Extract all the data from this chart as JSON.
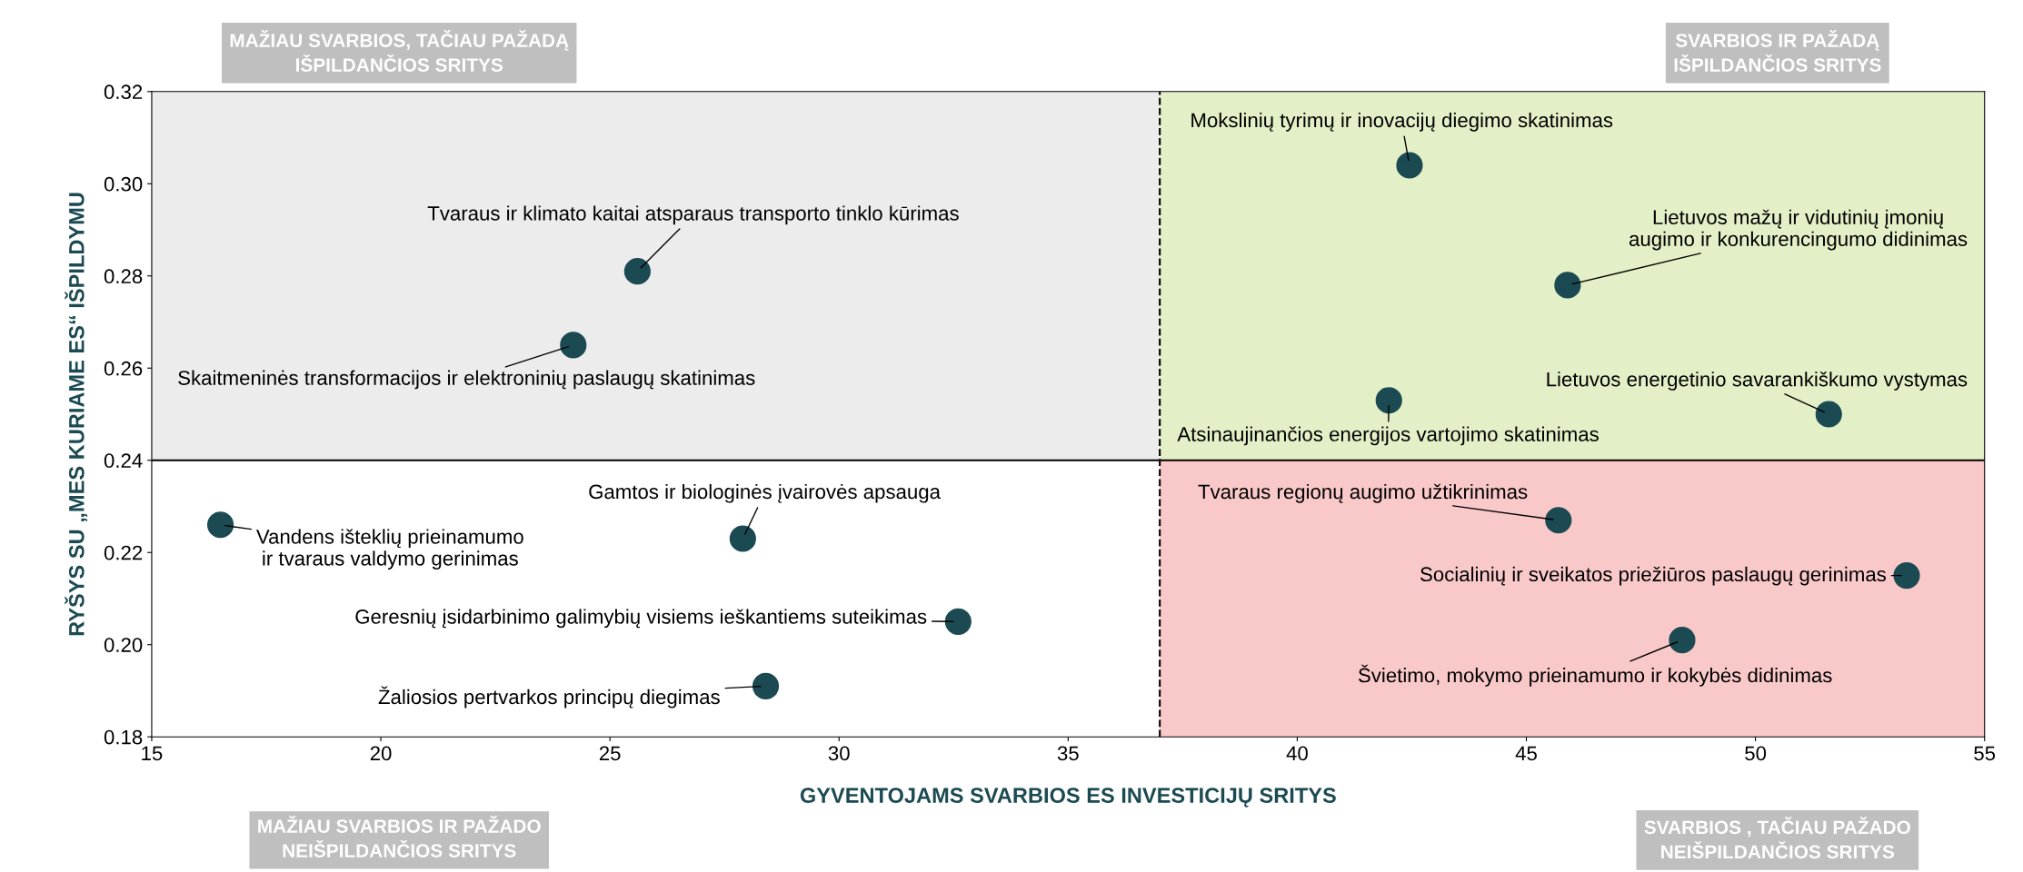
{
  "chart_data": {
    "type": "scatter",
    "xlabel": "GYVENTOJAMS SVARBIOS ES INVESTICIJŲ SRITYS",
    "ylabel": "RYŠYS SU „MES KURIAME ES“ IŠPILDYMU",
    "x": [
      42.45,
      45.9,
      51.6,
      42.0,
      25.6,
      24.2,
      16.5,
      27.9,
      32.6,
      28.4,
      45.7,
      53.3,
      48.4
    ],
    "series": [
      {
        "color": "#1b4a52",
        "values": [
          0.304,
          0.278,
          0.25,
          0.253,
          0.281,
          0.265,
          0.226,
          0.223,
          0.205,
          0.191,
          0.227,
          0.215,
          0.201
        ]
      }
    ],
    "marker": "circle",
    "xlim": [
      15,
      55
    ],
    "ylim": [
      0.18,
      0.32
    ],
    "xticks": [
      15,
      20,
      25,
      30,
      35,
      40,
      45,
      50,
      55
    ],
    "yticks": [
      {
        "value": 0.18,
        "label": "0.18"
      },
      {
        "value": 0.2,
        "label": "0.20"
      },
      {
        "value": 0.22,
        "label": "0.22"
      },
      {
        "value": 0.24,
        "label": "0.24"
      },
      {
        "value": 0.26,
        "label": "0.26"
      },
      {
        "value": 0.28,
        "label": "0.28"
      },
      {
        "value": 0.3,
        "label": "0.30"
      },
      {
        "value": 0.32,
        "label": "0.32"
      }
    ],
    "ref_lines": [
      {
        "axis": "x",
        "value": 37,
        "line_style": "dashed",
        "color": "#000000"
      },
      {
        "axis": "y",
        "value": 0.24,
        "line_style": "solid",
        "color": "#000000"
      }
    ],
    "annotations": [
      {
        "text": "Mokslinių tyrimų ir inovacijų diegimo skatinimas",
        "x": 42.45,
        "y": 0.304
      },
      {
        "text": "Lietuvos mažų ir vidutinių įmonių\naugimo ir konkurencingumo didinimas",
        "x": 45.9,
        "y": 0.278
      },
      {
        "text": "Lietuvos energetinio savarankiškumo vystymas",
        "x": 51.6,
        "y": 0.25
      },
      {
        "text": "Atsinaujinančios energijos vartojimo skatinimas",
        "x": 42.0,
        "y": 0.253
      },
      {
        "text": "Tvaraus ir klimato kaitai atsparaus transporto tinklo kūrimas",
        "x": 25.6,
        "y": 0.281
      },
      {
        "text": "Skaitmeninės transformacijos ir elektroninių paslaugų skatinimas",
        "x": 24.2,
        "y": 0.265
      },
      {
        "text": "Vandens išteklių prieinamumo\nir tvaraus valdymo gerinimas",
        "x": 16.5,
        "y": 0.226
      },
      {
        "text": "Gamtos ir biologinės įvairovės apsauga",
        "x": 27.9,
        "y": 0.223
      },
      {
        "text": "Geresnių įsidarbinimo galimybių visiems ieškantiems suteikimas",
        "x": 32.6,
        "y": 0.205
      },
      {
        "text": "Žaliosios pertvarkos principų diegimas",
        "x": 28.4,
        "y": 0.191
      },
      {
        "text": "Tvaraus regionų augimo užtikrinimas",
        "x": 45.7,
        "y": 0.227
      },
      {
        "text": "Socialinių ir sveikatos priežiūros paslaugų gerinimas",
        "x": 53.3,
        "y": 0.215
      },
      {
        "text": "Švietimo, mokymo prieinamumo ir kokybės didinimas",
        "x": 48.4,
        "y": 0.201
      },
      "MAŽIAU SVARBIOS, TAČIAU PAŽADĄ\nIŠPILDANČIOS SRITYS",
      "SVARBIOS IR PAŽADĄ\nIŠPILDANČIOS SRITYS",
      "MAŽIAU SVARBIOS IR PAŽADO\nNEIŠPILDANČIOS SRITYS",
      "SVARBIOS , TAČIAU PAŽADO\nNEIŠPILDANČIOS SRITYS"
    ],
    "grid": false,
    "legend": false
  }
}
